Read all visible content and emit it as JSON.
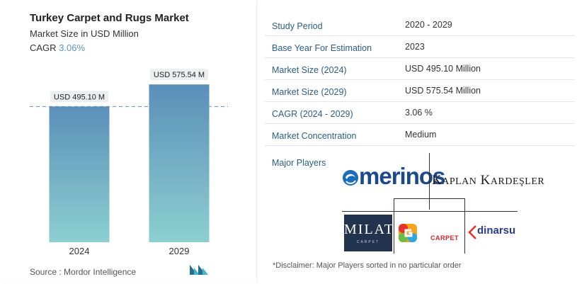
{
  "header": {
    "title": "Turkey Carpet and Rugs Market",
    "subtitle": "Market Size in USD Million",
    "cagr_label": "CAGR",
    "cagr_value": "3.06%"
  },
  "chart_data": {
    "type": "bar",
    "categories": [
      "2024",
      "2029"
    ],
    "values": [
      495.1,
      575.54
    ],
    "data_labels": [
      "USD 495.10 M",
      "USD 575.54 M"
    ],
    "ylim": [
      0,
      620
    ],
    "reference_line": 495.1,
    "colors": {
      "bar_top": "#5b8fb9",
      "bar_bottom": "#8ccfd0",
      "label_bg": "#eceeef",
      "reference_line": "#6b8fa8"
    }
  },
  "footer": {
    "source": "Source :  Mordor Intelligence"
  },
  "table": {
    "rows": [
      {
        "key": "Study Period",
        "value": "2020 - 2029"
      },
      {
        "key": "Base Year For Estimation",
        "value": "2023"
      },
      {
        "key": "Market Size (2024)",
        "value": "USD 495.10 Million"
      },
      {
        "key": "Market Size (2029)",
        "value": "USD 575.54 Million"
      },
      {
        "key": "CAGR (2024 - 2029)",
        "value": "3.06 %"
      },
      {
        "key": "Market Concentration",
        "value": "Medium"
      }
    ]
  },
  "players": {
    "label": "Major Players",
    "merinos": "merinos",
    "kaplan_k": "K",
    "kaplan_aplan": "APLAN",
    "kaplan_k2": "K",
    "kaplan_ardesler": "ARDEŞLER",
    "milat": "MILAT",
    "milat_sub": "CARPET",
    "carpet": "CARPET",
    "dinarsu": "dinarsu"
  },
  "disclaimer": "*Disclaimer: Major Players sorted in no particular order"
}
